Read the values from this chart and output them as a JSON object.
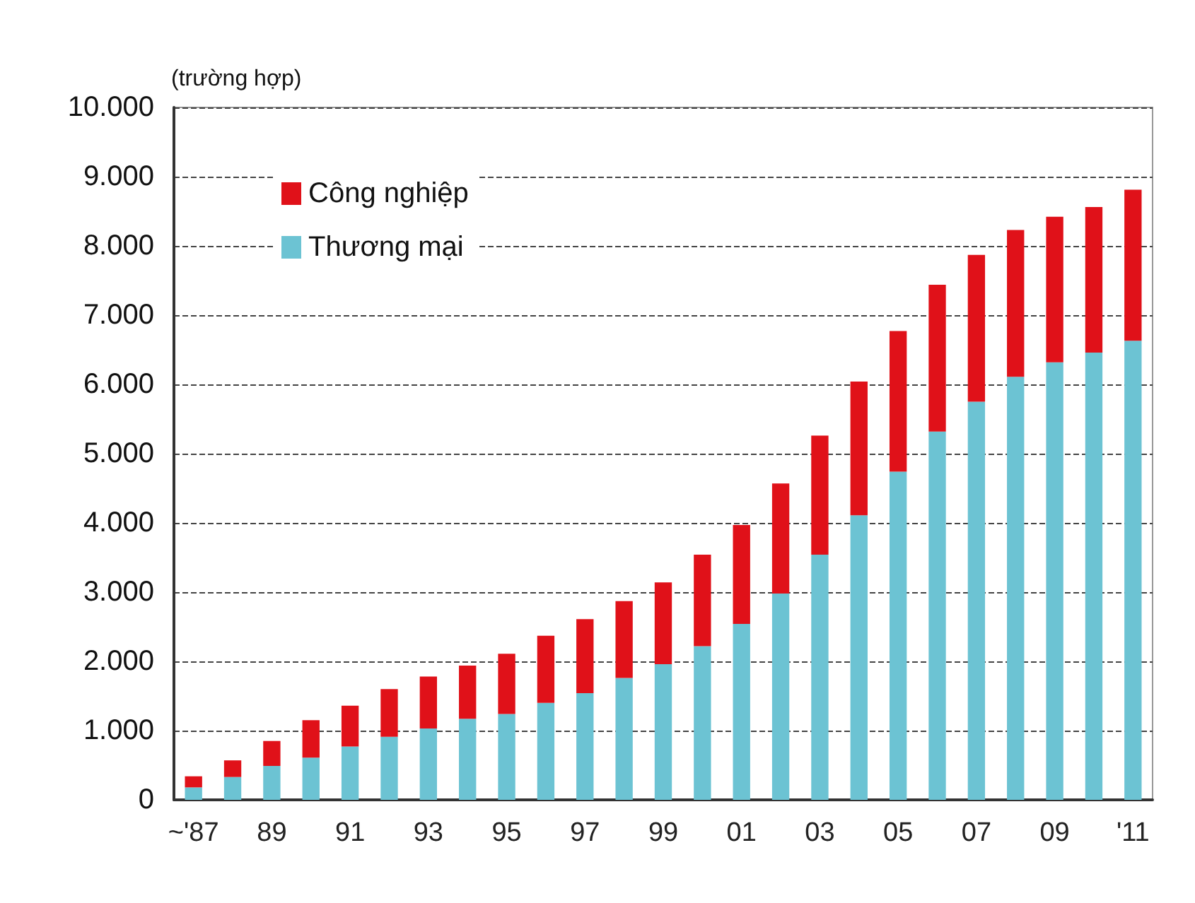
{
  "chart_data": {
    "type": "bar",
    "stacked": true,
    "ylabel": "(trường hợp)",
    "categories": [
      "~'87",
      null,
      "89",
      null,
      "91",
      null,
      "93",
      null,
      "95",
      null,
      "97",
      null,
      "99",
      null,
      "01",
      null,
      "03",
      null,
      "05",
      null,
      "07",
      null,
      "09",
      null,
      "'11"
    ],
    "series": [
      {
        "name": "Thương mại",
        "color": "#6cc3d3",
        "values": [
          180,
          330,
          490,
          610,
          770,
          910,
          1030,
          1170,
          1240,
          1400,
          1540,
          1760,
          1960,
          2220,
          2540,
          2980,
          3540,
          4110,
          4740,
          5320,
          5750,
          6110,
          6320,
          6460,
          6630
        ]
      },
      {
        "name": "Công nghiệp",
        "color": "#e01119",
        "values": [
          160,
          240,
          360,
          540,
          590,
          690,
          750,
          770,
          870,
          970,
          1070,
          1110,
          1180,
          1320,
          1430,
          1590,
          1720,
          1930,
          2030,
          2120,
          2120,
          2120,
          2100,
          2100,
          2180
        ]
      }
    ],
    "ylim": [
      0,
      10000
    ],
    "yticks": [
      {
        "value": 0,
        "label": "0"
      },
      {
        "value": 1000,
        "label": "1.000"
      },
      {
        "value": 2000,
        "label": "2.000"
      },
      {
        "value": 3000,
        "label": "3.000"
      },
      {
        "value": 4000,
        "label": "4.000"
      },
      {
        "value": 5000,
        "label": "5.000"
      },
      {
        "value": 6000,
        "label": "6.000"
      },
      {
        "value": 7000,
        "label": "7.000"
      },
      {
        "value": 8000,
        "label": "8.000"
      },
      {
        "value": 9000,
        "label": "9.000"
      },
      {
        "value": 10000,
        "label": "10.000"
      }
    ],
    "grid": "y",
    "legend": "top left"
  }
}
